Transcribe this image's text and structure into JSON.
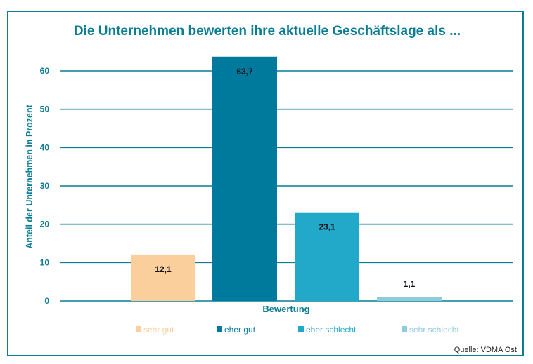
{
  "chart_data": {
    "type": "bar",
    "title": "Die Unternehmen bewerten ihre aktuelle Geschäftslage als ...",
    "xlabel": "Bewertung",
    "ylabel": "Anteil der Unternehmen in Prozent",
    "ylim": [
      0,
      64
    ],
    "yticks": [
      "0",
      "10",
      "20",
      "30",
      "40",
      "50",
      "60"
    ],
    "grid": true,
    "legend_position": "bottom",
    "categories": [
      "sehr gut",
      "eher gut",
      "eher schlecht",
      "sehr schlecht"
    ],
    "values": [
      12.1,
      63.7,
      23.1,
      1.1
    ],
    "data_labels": [
      "12,1",
      "63,7",
      "23,1",
      "1,1"
    ],
    "colors": [
      "#fbcf9c",
      "#007a9c",
      "#22a8c8",
      "#8dcbdd"
    ],
    "source": "Quelle: VDMA Ost"
  },
  "colors": {
    "accent": "#0a7d95",
    "grid": "#0a7d95"
  }
}
